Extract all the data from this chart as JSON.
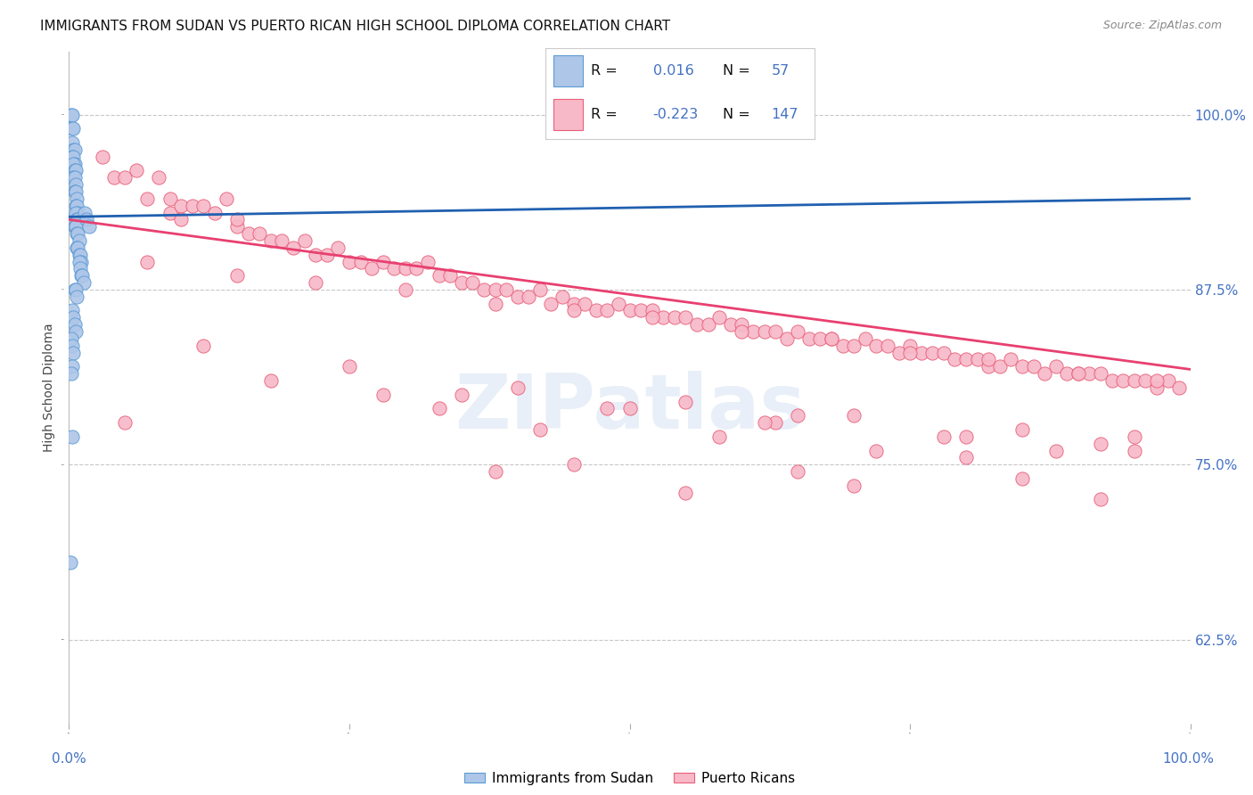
{
  "title": "IMMIGRANTS FROM SUDAN VS PUERTO RICAN HIGH SCHOOL DIPLOMA CORRELATION CHART",
  "source": "Source: ZipAtlas.com",
  "ylabel": "High School Diploma",
  "legend_label1": "Immigrants from Sudan",
  "legend_label2": "Puerto Ricans",
  "r1": "0.016",
  "n1": "57",
  "r2": "-0.223",
  "n2": "147",
  "yticks": [
    0.625,
    0.75,
    0.875,
    1.0
  ],
  "ytick_labels": [
    "62.5%",
    "75.0%",
    "87.5%",
    "100.0%"
  ],
  "color_blue_fill": "#aec6e8",
  "color_blue_edge": "#5b9bd5",
  "color_pink_fill": "#f7b8c8",
  "color_pink_edge": "#e8607a",
  "color_blue_trendline": "#2060b0",
  "color_pink_trendline": "#e84070",
  "color_axis_text": "#4472c4",
  "color_legend_value": "#4472c4",
  "color_legend_label": "#222222",
  "watermark": "ZIPatlas",
  "xlim": [
    0.0,
    1.0
  ],
  "ylim": [
    0.565,
    1.045
  ],
  "blue_x": [
    0.002,
    0.003,
    0.003,
    0.004,
    0.003,
    0.004,
    0.005,
    0.003,
    0.004,
    0.005,
    0.004,
    0.005,
    0.006,
    0.004,
    0.005,
    0.006,
    0.005,
    0.006,
    0.007,
    0.006,
    0.007,
    0.008,
    0.006,
    0.007,
    0.008,
    0.005,
    0.006,
    0.007,
    0.008,
    0.009,
    0.007,
    0.008,
    0.009,
    0.01,
    0.011,
    0.009,
    0.01,
    0.011,
    0.012,
    0.013,
    0.005,
    0.006,
    0.007,
    0.014,
    0.016,
    0.018,
    0.003,
    0.004,
    0.005,
    0.006,
    0.002,
    0.003,
    0.004,
    0.003,
    0.002,
    0.001,
    0.003
  ],
  "blue_y": [
    1.0,
    1.0,
    0.99,
    0.99,
    0.98,
    0.975,
    0.975,
    0.97,
    0.97,
    0.965,
    0.965,
    0.96,
    0.96,
    0.955,
    0.955,
    0.95,
    0.945,
    0.945,
    0.94,
    0.935,
    0.935,
    0.93,
    0.93,
    0.925,
    0.925,
    0.92,
    0.92,
    0.915,
    0.915,
    0.91,
    0.905,
    0.905,
    0.9,
    0.9,
    0.895,
    0.895,
    0.89,
    0.885,
    0.885,
    0.88,
    0.875,
    0.875,
    0.87,
    0.93,
    0.925,
    0.92,
    0.86,
    0.855,
    0.85,
    0.845,
    0.84,
    0.835,
    0.83,
    0.82,
    0.815,
    0.68,
    0.77
  ],
  "pink_x": [
    0.005,
    0.03,
    0.04,
    0.05,
    0.06,
    0.07,
    0.08,
    0.09,
    0.09,
    0.1,
    0.1,
    0.11,
    0.12,
    0.13,
    0.14,
    0.15,
    0.15,
    0.16,
    0.17,
    0.18,
    0.19,
    0.2,
    0.21,
    0.22,
    0.23,
    0.24,
    0.25,
    0.26,
    0.27,
    0.28,
    0.29,
    0.3,
    0.31,
    0.32,
    0.33,
    0.34,
    0.35,
    0.36,
    0.37,
    0.38,
    0.39,
    0.4,
    0.41,
    0.42,
    0.43,
    0.44,
    0.45,
    0.46,
    0.47,
    0.48,
    0.49,
    0.5,
    0.51,
    0.52,
    0.53,
    0.54,
    0.55,
    0.56,
    0.57,
    0.58,
    0.59,
    0.6,
    0.61,
    0.62,
    0.63,
    0.64,
    0.65,
    0.66,
    0.67,
    0.68,
    0.69,
    0.7,
    0.71,
    0.72,
    0.73,
    0.74,
    0.75,
    0.76,
    0.77,
    0.78,
    0.79,
    0.8,
    0.81,
    0.82,
    0.83,
    0.84,
    0.85,
    0.86,
    0.87,
    0.88,
    0.89,
    0.9,
    0.91,
    0.92,
    0.93,
    0.94,
    0.95,
    0.96,
    0.97,
    0.98,
    0.99,
    0.07,
    0.15,
    0.22,
    0.3,
    0.38,
    0.45,
    0.52,
    0.6,
    0.68,
    0.75,
    0.82,
    0.9,
    0.97,
    0.12,
    0.25,
    0.4,
    0.55,
    0.7,
    0.85,
    0.95,
    0.18,
    0.35,
    0.5,
    0.65,
    0.8,
    0.92,
    0.28,
    0.48,
    0.63,
    0.78,
    0.88,
    0.05,
    0.42,
    0.58,
    0.72,
    0.33,
    0.62,
    0.95,
    0.8,
    0.45,
    0.65,
    0.85,
    0.38,
    0.7,
    0.55,
    0.92
  ],
  "pink_y": [
    0.92,
    0.97,
    0.955,
    0.955,
    0.96,
    0.94,
    0.955,
    0.94,
    0.93,
    0.935,
    0.925,
    0.935,
    0.935,
    0.93,
    0.94,
    0.92,
    0.925,
    0.915,
    0.915,
    0.91,
    0.91,
    0.905,
    0.91,
    0.9,
    0.9,
    0.905,
    0.895,
    0.895,
    0.89,
    0.895,
    0.89,
    0.89,
    0.89,
    0.895,
    0.885,
    0.885,
    0.88,
    0.88,
    0.875,
    0.875,
    0.875,
    0.87,
    0.87,
    0.875,
    0.865,
    0.87,
    0.865,
    0.865,
    0.86,
    0.86,
    0.865,
    0.86,
    0.86,
    0.86,
    0.855,
    0.855,
    0.855,
    0.85,
    0.85,
    0.855,
    0.85,
    0.85,
    0.845,
    0.845,
    0.845,
    0.84,
    0.845,
    0.84,
    0.84,
    0.84,
    0.835,
    0.835,
    0.84,
    0.835,
    0.835,
    0.83,
    0.835,
    0.83,
    0.83,
    0.83,
    0.825,
    0.825,
    0.825,
    0.82,
    0.82,
    0.825,
    0.82,
    0.82,
    0.815,
    0.82,
    0.815,
    0.815,
    0.815,
    0.815,
    0.81,
    0.81,
    0.81,
    0.81,
    0.805,
    0.81,
    0.805,
    0.895,
    0.885,
    0.88,
    0.875,
    0.865,
    0.86,
    0.855,
    0.845,
    0.84,
    0.83,
    0.825,
    0.815,
    0.81,
    0.835,
    0.82,
    0.805,
    0.795,
    0.785,
    0.775,
    0.77,
    0.81,
    0.8,
    0.79,
    0.785,
    0.77,
    0.765,
    0.8,
    0.79,
    0.78,
    0.77,
    0.76,
    0.78,
    0.775,
    0.77,
    0.76,
    0.79,
    0.78,
    0.76,
    0.755,
    0.75,
    0.745,
    0.74,
    0.745,
    0.735,
    0.73,
    0.725
  ],
  "blue_trend_x": [
    0.0,
    1.0
  ],
  "blue_trend_y": [
    0.927,
    0.94
  ],
  "pink_trend_x": [
    0.0,
    1.0
  ],
  "pink_trend_y": [
    0.925,
    0.818
  ]
}
